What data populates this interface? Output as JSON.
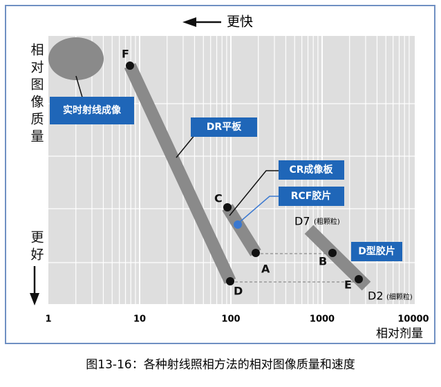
{
  "header": {
    "arrow_label": "更快"
  },
  "y_axis": {
    "label": "相对图像质量",
    "better": "更好"
  },
  "x_axis": {
    "label": "相对剂量",
    "ticks": [
      1,
      10,
      100,
      1000,
      10000
    ]
  },
  "callouts": {
    "realtime": "实时射线成像",
    "dr": "DR平板",
    "cr": "CR成像板",
    "rcf": "RCF胶片",
    "dfilm": "D型胶片"
  },
  "points": {
    "f": "F",
    "d": "D",
    "c": "C",
    "a": "A",
    "b": "B",
    "e": "E",
    "d7": "D7",
    "d7_note": "(粗颗粒)",
    "d2": "D2",
    "d2_note": "(细颗粒)"
  },
  "caption": "图13-16：各种射线照相方法的相对图像质量和速度"
}
